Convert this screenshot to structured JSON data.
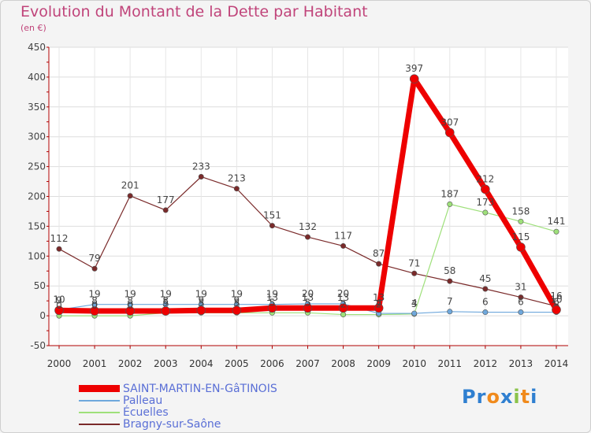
{
  "title": "Evolution du Montant de la Dette par Habitant",
  "subtitle": "(en €)",
  "brand": "Proxiti",
  "chart_data": {
    "type": "line",
    "title": "Evolution du Montant de la Dette par Habitant",
    "ylabel": "(en €)",
    "x": [
      2000,
      2001,
      2002,
      2003,
      2004,
      2005,
      2006,
      2007,
      2008,
      2009,
      2010,
      2011,
      2012,
      2013,
      2014
    ],
    "ylim": [
      -50,
      450
    ],
    "yticks": [
      -50,
      0,
      50,
      100,
      150,
      200,
      250,
      300,
      350,
      400,
      450
    ],
    "grid": true,
    "legend_position": "bottom-left",
    "series": [
      {
        "name": "Bragny-sur-Saône",
        "color": "#7a2a2a",
        "width": 1.2,
        "values": [
          112,
          79,
          201,
          177,
          233,
          213,
          151,
          132,
          117,
          87,
          71,
          58,
          45,
          31,
          16
        ]
      },
      {
        "name": "Écuelles",
        "color": "#9ee07a",
        "width": 1.2,
        "values": [
          0,
          0,
          0,
          5,
          5,
          5,
          5,
          5,
          2,
          2,
          3,
          187,
          173,
          158,
          141
        ]
      },
      {
        "name": "Palleau",
        "color": "#6fa8dc",
        "width": 1.2,
        "values": [
          10,
          19,
          19,
          19,
          19,
          19,
          19,
          20,
          20,
          4,
          4,
          7,
          6,
          6,
          6
        ]
      },
      {
        "name": "SAINT-MARTIN-EN-GâTINOIS",
        "color": "#ee0000",
        "width": 7,
        "values": [
          9,
          8,
          8,
          8,
          9,
          9,
          13,
          13,
          13,
          13,
          397,
          307,
          212,
          115,
          10
        ]
      }
    ]
  }
}
